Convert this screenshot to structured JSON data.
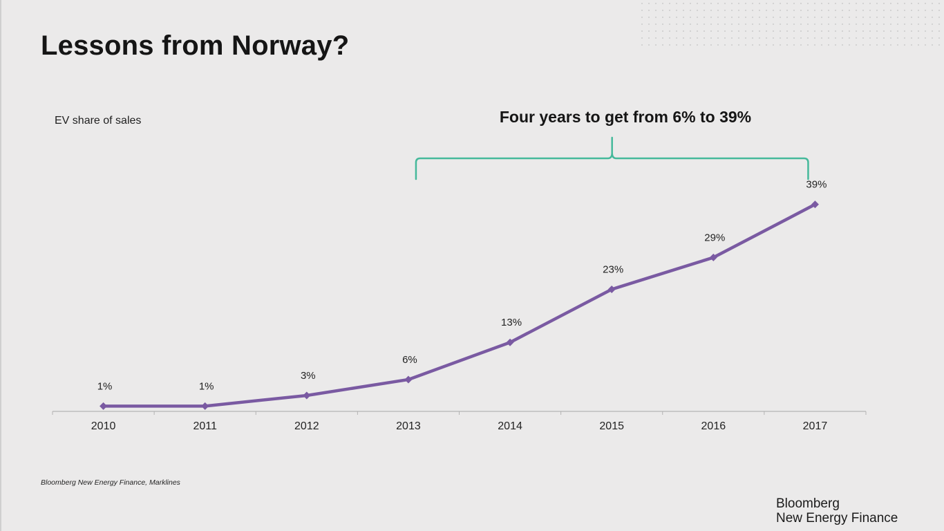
{
  "slide": {
    "title": "Lessons from Norway?",
    "source": "Bloomberg New Energy Finance, Marklines",
    "brand_line1": "Bloomberg",
    "brand_line2": "New Energy Finance"
  },
  "colors": {
    "series": "#7a5aa2",
    "bracket": "#45b99b",
    "axis": "#b3b3b3"
  },
  "chart_data": {
    "type": "line",
    "ylabel": "EV share of sales",
    "xlabel": "",
    "categories": [
      "2010",
      "2011",
      "2012",
      "2013",
      "2014",
      "2015",
      "2016",
      "2017"
    ],
    "series": [
      {
        "values": [
          1,
          1,
          3,
          6,
          13,
          23,
          29,
          39
        ],
        "labels": [
          "1%",
          "1%",
          "3%",
          "6%",
          "13%",
          "23%",
          "29%",
          "39%"
        ]
      }
    ],
    "ylim": [
      0,
      40
    ],
    "grid": false,
    "legend": "none",
    "annotation": {
      "text": "Four years to get from 6% to 39%",
      "from_category": "2013",
      "to_category": "2017"
    }
  }
}
